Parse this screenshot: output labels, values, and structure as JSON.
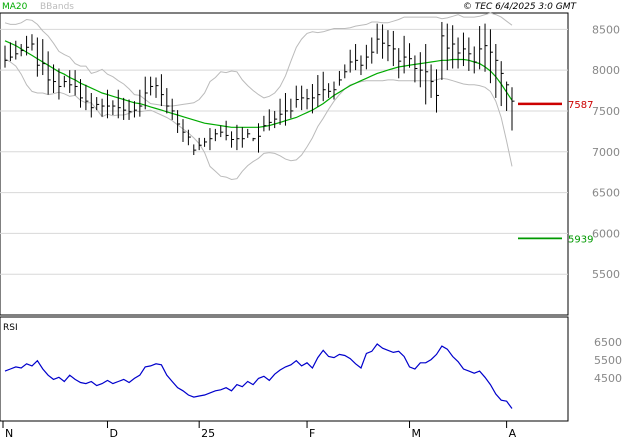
{
  "header": {
    "indicator": "MA20",
    "indicator_color": "#00aa00",
    "bands": "BBands",
    "bands_color": "#bbbbbb",
    "copyright": "© TEC 6/4/2025 3:0 GMT"
  },
  "markers": {
    "upper": {
      "label": "7587",
      "value": 7587,
      "color": "#cc0000"
    },
    "lower": {
      "label": "5939",
      "value": 5939,
      "color": "#009900"
    }
  },
  "rsi_label": "RSI",
  "chart_data": [
    {
      "type": "line",
      "panel": "price",
      "x_axis_labels": [
        "N",
        "D",
        "25",
        "F",
        "M",
        "A"
      ],
      "y_ticks": [
        "8500",
        "8000",
        "7500",
        "7000",
        "6500",
        "6000",
        "5500"
      ],
      "ylim": [
        5000,
        8700
      ],
      "grid": true,
      "colors": {
        "price": "#000000",
        "ma20": "#00aa00",
        "bbands": "#bbbbbb",
        "rsi": "#0000cc"
      },
      "series": [
        {
          "name": "MA20",
          "values": [
            8360,
            8330,
            8300,
            8260,
            8220,
            8180,
            8140,
            8100,
            8060,
            8020,
            7980,
            7950,
            7910,
            7880,
            7840,
            7810,
            7780,
            7750,
            7720,
            7700,
            7680,
            7660,
            7640,
            7620,
            7600,
            7590,
            7570,
            7550,
            7530,
            7510,
            7490,
            7470,
            7450,
            7430,
            7410,
            7390,
            7370,
            7350,
            7340,
            7330,
            7320,
            7310,
            7300,
            7300,
            7300,
            7300,
            7300,
            7300,
            7310,
            7320,
            7340,
            7360,
            7380,
            7400,
            7420,
            7450,
            7480,
            7510,
            7550,
            7590,
            7640,
            7690,
            7730,
            7770,
            7810,
            7840,
            7870,
            7900,
            7930,
            7960,
            7980,
            8000,
            8020,
            8040,
            8050,
            8060,
            8070,
            8080,
            8090,
            8100,
            8110,
            8120,
            8120,
            8130,
            8130,
            8130,
            8120,
            8100,
            8080,
            8040,
            7990,
            7920,
            7830,
            7730,
            7630
          ]
        },
        {
          "name": "BBands",
          "upper": [
            8580,
            8560,
            8560,
            8580,
            8620,
            8610,
            8560,
            8480,
            8420,
            8330,
            8230,
            8190,
            8160,
            8080,
            8050,
            8050,
            7960,
            7980,
            8010,
            7950,
            7920,
            7870,
            7830,
            7770,
            7700,
            7690,
            7640,
            7590,
            7580,
            7570,
            7560,
            7560,
            7570,
            7580,
            7590,
            7600,
            7640,
            7720,
            7860,
            7910,
            7980,
            7970,
            7990,
            7980,
            7880,
            7810,
            7750,
            7700,
            7660,
            7680,
            7720,
            7800,
            7930,
            8110,
            8280,
            8380,
            8450,
            8470,
            8460,
            8470,
            8490,
            8510,
            8510,
            8510,
            8520,
            8540,
            8550,
            8560,
            8590,
            8590,
            8580,
            8580,
            8600,
            8620,
            8650,
            8650,
            8650,
            8650,
            8650,
            8650,
            8650,
            8630,
            8640,
            8660,
            8680,
            8650,
            8650,
            8650,
            8660,
            8680,
            8700,
            8680,
            8650,
            8600,
            8550
          ],
          "lower": [
            8140,
            8100,
            8050,
            7950,
            7820,
            7740,
            7720,
            7720,
            7700,
            7710,
            7730,
            7710,
            7680,
            7690,
            7630,
            7600,
            7600,
            7520,
            7430,
            7460,
            7440,
            7450,
            7450,
            7470,
            7500,
            7490,
            7500,
            7510,
            7480,
            7450,
            7420,
            7380,
            7330,
            7280,
            7230,
            7170,
            7100,
            6990,
            6820,
            6760,
            6700,
            6690,
            6660,
            6670,
            6760,
            6830,
            6880,
            6920,
            6980,
            6990,
            6980,
            6950,
            6910,
            6890,
            6900,
            6960,
            7060,
            7170,
            7310,
            7410,
            7520,
            7620,
            7700,
            7770,
            7820,
            7840,
            7860,
            7870,
            7870,
            7870,
            7870,
            7880,
            7880,
            7870,
            7870,
            7870,
            7870,
            7870,
            7870,
            7870,
            7880,
            7900,
            7890,
            7870,
            7850,
            7830,
            7820,
            7820,
            7810,
            7790,
            7740,
            7620,
            7420,
            7130,
            6820
          ]
        },
        {
          "name": "Price",
          "high": [
            8300,
            8340,
            8360,
            8320,
            8420,
            8440,
            8400,
            8380,
            8230,
            8070,
            8020,
            7930,
            8000,
            8000,
            7890,
            7820,
            7720,
            7670,
            7650,
            7760,
            7630,
            7760,
            7660,
            7640,
            7620,
            7760,
            7920,
            7920,
            7910,
            7950,
            7780,
            7650,
            7510,
            7400,
            7270,
            7090,
            7170,
            7170,
            7290,
            7280,
            7320,
            7380,
            7250,
            7330,
            7300,
            7280,
            7170,
            7350,
            7440,
            7520,
            7500,
            7650,
            7720,
            7650,
            7810,
            7810,
            7770,
            7830,
            7940,
            7980,
            7840,
            7860,
            7990,
            8070,
            8250,
            8320,
            8180,
            8310,
            8400,
            8570,
            8560,
            8490,
            8480,
            8270,
            8420,
            8330,
            8180,
            8220,
            8320,
            8070,
            8010,
            8590,
            8570,
            8550,
            8400,
            8460,
            8400,
            8290,
            8540,
            8570,
            8500,
            8320,
            8110,
            7860,
            7790
          ],
          "low": [
            8030,
            8110,
            8130,
            8170,
            8180,
            8240,
            7920,
            7940,
            7700,
            7720,
            7640,
            7790,
            7720,
            7690,
            7540,
            7510,
            7420,
            7510,
            7430,
            7410,
            7450,
            7410,
            7390,
            7390,
            7420,
            7430,
            7520,
            7690,
            7660,
            7560,
            7470,
            7390,
            7230,
            7120,
            7080,
            6960,
            7020,
            7060,
            7020,
            7130,
            7180,
            7140,
            7050,
            7020,
            7050,
            7170,
            7130,
            6990,
            7250,
            7260,
            7290,
            7330,
            7320,
            7410,
            7540,
            7510,
            7520,
            7470,
            7550,
            7620,
            7660,
            7640,
            7810,
            7900,
            7970,
            8000,
            7940,
            8010,
            8080,
            8200,
            8140,
            8110,
            8050,
            7900,
            7960,
            8030,
            7850,
            7790,
            7580,
            7660,
            7480,
            7880,
            8000,
            8020,
            8020,
            8050,
            7990,
            7960,
            8010,
            7980,
            7840,
            7660,
            7560,
            7500,
            7260
          ],
          "close": [
            8120,
            8160,
            8200,
            8240,
            8280,
            8320,
            8060,
            8080,
            7880,
            7860,
            7800,
            7860,
            7820,
            7800,
            7660,
            7620,
            7540,
            7580,
            7560,
            7560,
            7560,
            7540,
            7510,
            7490,
            7510,
            7560,
            7720,
            7800,
            7810,
            7700,
            7560,
            7500,
            7340,
            7240,
            7180,
            7020,
            7080,
            7120,
            7160,
            7220,
            7240,
            7200,
            7150,
            7160,
            7160,
            7220,
            7160,
            7190,
            7320,
            7360,
            7400,
            7460,
            7500,
            7500,
            7640,
            7660,
            7650,
            7660,
            7700,
            7760,
            7740,
            7760,
            7880,
            7980,
            8100,
            8120,
            8060,
            8160,
            8220,
            8380,
            8330,
            8300,
            8260,
            8110,
            8160,
            8140,
            8020,
            8000,
            7980,
            7860,
            7690,
            8420,
            8270,
            8320,
            8210,
            8260,
            8200,
            8100,
            8260,
            8300,
            8220,
            8120,
            7960,
            7820,
            7620
          ]
        }
      ]
    },
    {
      "type": "line",
      "panel": "rsi",
      "title": "RSI",
      "y_ticks": [
        "6500",
        "5500",
        "4500"
      ],
      "ylim": [
        0,
        100
      ],
      "series": [
        {
          "name": "RSI",
          "values": [
            48,
            50,
            52,
            51,
            55,
            53,
            58,
            50,
            44,
            40,
            42,
            38,
            44,
            40,
            37,
            36,
            38,
            34,
            36,
            39,
            36,
            38,
            40,
            37,
            41,
            44,
            52,
            53,
            55,
            54,
            44,
            38,
            32,
            29,
            25,
            23,
            24,
            25,
            27,
            29,
            30,
            32,
            29,
            35,
            33,
            38,
            35,
            41,
            43,
            39,
            45,
            49,
            52,
            54,
            58,
            53,
            56,
            51,
            61,
            68,
            62,
            61,
            64,
            63,
            60,
            55,
            51,
            65,
            67,
            74,
            70,
            68,
            66,
            67,
            62,
            52,
            50,
            56,
            56,
            59,
            64,
            72,
            69,
            62,
            57,
            50,
            48,
            46,
            48,
            42,
            35,
            26,
            20,
            19,
            12
          ]
        }
      ]
    }
  ]
}
